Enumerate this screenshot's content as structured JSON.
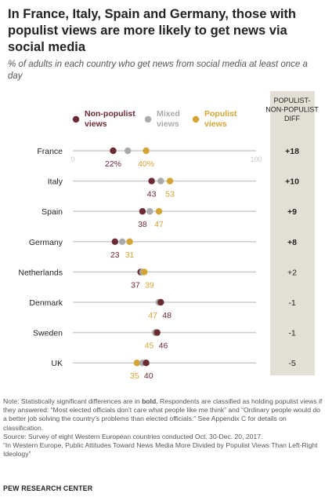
{
  "title": "In France, Italy, Spain and Germany, those with populist views are more likely to get news via social media",
  "subtitle": "% of adults in each country who get news from social media at least once a day",
  "diff_header": "POPULIST-NON-POPULIST DIFF",
  "colors": {
    "non_populist": "#6b2a34",
    "mixed": "#aaaaaa",
    "populist": "#d4a435",
    "diff_background": "#e4dfd4",
    "axis_line": "#cccccc"
  },
  "chart_data": {
    "type": "dot-plot",
    "xlim": [
      0,
      100
    ],
    "x_tick_labels": [
      "0",
      "100"
    ],
    "legend_placement": "top",
    "series": [
      {
        "name": "Non-populist views",
        "color": "#6b2a34",
        "values": [
          22,
          43,
          38,
          23,
          37,
          48,
          46,
          40
        ]
      },
      {
        "name": "Mixed views",
        "color": "#aaaaaa",
        "values": [
          30,
          48,
          42,
          27,
          38,
          47,
          45,
          38
        ]
      },
      {
        "name": "Populist views",
        "color": "#d4a435",
        "values": [
          40,
          53,
          47,
          31,
          39,
          47,
          45,
          35
        ]
      }
    ],
    "rows": [
      {
        "country": "France",
        "non_populist": 22,
        "populist": 40,
        "np_label": "22%",
        "p_label": "40%",
        "diff": "+18",
        "bold": true,
        "order": "np-first"
      },
      {
        "country": "Italy",
        "non_populist": 43,
        "populist": 53,
        "np_label": "43",
        "p_label": "53",
        "diff": "+10",
        "bold": true,
        "order": "np-first"
      },
      {
        "country": "Spain",
        "non_populist": 38,
        "populist": 47,
        "np_label": "38",
        "p_label": "47",
        "diff": "+9",
        "bold": true,
        "order": "np-first"
      },
      {
        "country": "Germany",
        "non_populist": 23,
        "populist": 31,
        "np_label": "23",
        "p_label": "31",
        "diff": "+8",
        "bold": true,
        "order": "np-first"
      },
      {
        "country": "Netherlands",
        "non_populist": 37,
        "populist": 39,
        "np_label": "37",
        "p_label": "39",
        "diff": "+2",
        "bold": false,
        "order": "np-first"
      },
      {
        "country": "Denmark",
        "non_populist": 48,
        "populist": 47,
        "np_label": "48",
        "p_label": "47",
        "diff": "-1",
        "bold": false,
        "order": "p-first"
      },
      {
        "country": "Sweden",
        "non_populist": 46,
        "populist": 45,
        "np_label": "46",
        "p_label": "45",
        "diff": "-1",
        "bold": false,
        "order": "p-first"
      },
      {
        "country": "UK",
        "non_populist": 40,
        "populist": 35,
        "np_label": "40",
        "p_label": "35",
        "diff": "-5",
        "bold": false,
        "order": "p-first"
      }
    ]
  },
  "notes": {
    "note_prefix": "Note: Statistically significant differences are in ",
    "note_bold": "bold.",
    "note_rest": " Respondents are classified as holding populist views if they answered: “Most elected officials don’t care what people like me think” and “Ordinary people would do a better job solving the country’s problems than elected officials.” See Appendix C for details on classification.",
    "source": "Source: Survey of eight Western European countries conducted Oct. 30-Dec. 20, 2017.",
    "report": "“In Western Europe, Public Attitudes Toward News Media More Divided by Populist Views Than Left-Right Ideology”"
  },
  "brand": "PEW RESEARCH CENTER"
}
